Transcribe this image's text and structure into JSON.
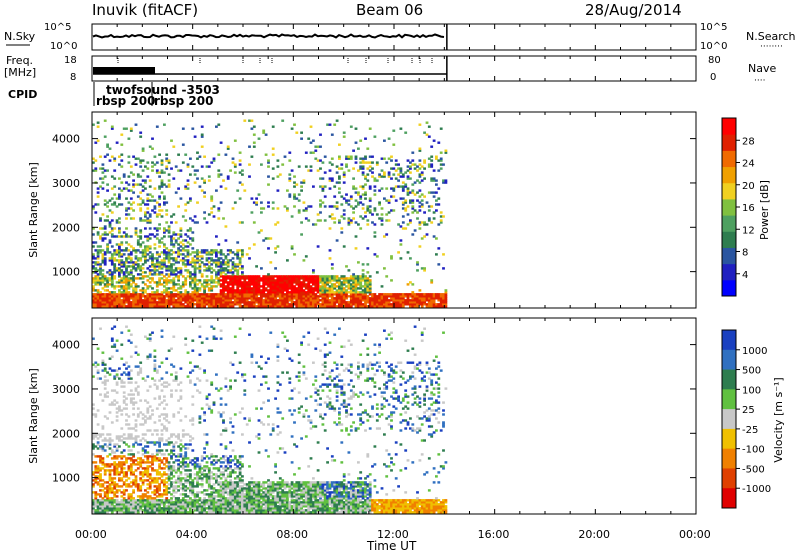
{
  "header": {
    "station": "Inuvik (fitACF)",
    "beam": "Beam 06",
    "date": "28/Aug/2014"
  },
  "nsky": {
    "label": "N.Sky",
    "left_ticks": [
      "10^5",
      "10^0"
    ],
    "right_ticks": [
      "10^5",
      "10^0"
    ],
    "right_label": "N.Search"
  },
  "freq": {
    "label_line1": "Freq.",
    "label_line2": "[MHz]",
    "left_ticks": [
      "18",
      "8"
    ],
    "right_ticks": [
      "80",
      "0"
    ],
    "right_label": "Nave"
  },
  "cpid": {
    "label": "CPID",
    "entries": [
      "twofsound -3503",
      "rbsp 200",
      "rbsp 200"
    ]
  },
  "time_axis": {
    "label": "Time UT",
    "ticks": [
      "00:00",
      "04:00",
      "08:00",
      "12:00",
      "16:00",
      "20:00",
      "00:00"
    ]
  },
  "chart_data": [
    {
      "type": "heatmap",
      "title": "",
      "xlabel": "Time UT",
      "ylabel": "Slant Range [km]",
      "xlim": [
        0,
        24
      ],
      "ylim": [
        180,
        4600
      ],
      "y_ticks": [
        "1000",
        "2000",
        "3000",
        "4000"
      ],
      "data_end_hour": 14.1,
      "colorbar": {
        "label": "Power [dB]",
        "ticks": [
          "4",
          "8",
          "12",
          "16",
          "20",
          "24",
          "28"
        ],
        "colors": [
          "#0000ff",
          "#2020c0",
          "#2a55a0",
          "#2e7d4f",
          "#4ea060",
          "#80c040",
          "#f0d020",
          "#f0a000",
          "#f06a00",
          "#e02000",
          "#ff0000"
        ]
      }
    },
    {
      "type": "heatmap",
      "title": "",
      "xlabel": "Time UT",
      "ylabel": "Slant Range [km]",
      "xlim": [
        0,
        24
      ],
      "ylim": [
        180,
        4600
      ],
      "y_ticks": [
        "1000",
        "2000",
        "3000",
        "4000"
      ],
      "data_end_hour": 14.1,
      "colorbar": {
        "label": "Velocity [m s⁻¹]",
        "ticks": [
          "1000",
          "500",
          "100",
          "25",
          "-25",
          "-100",
          "-500",
          "-1000"
        ],
        "colors": [
          "#1a40c0",
          "#3070c0",
          "#2e7d4f",
          "#60c040",
          "#c8c8c8",
          "#f0c000",
          "#f08000",
          "#e04000",
          "#e00000"
        ]
      }
    }
  ]
}
